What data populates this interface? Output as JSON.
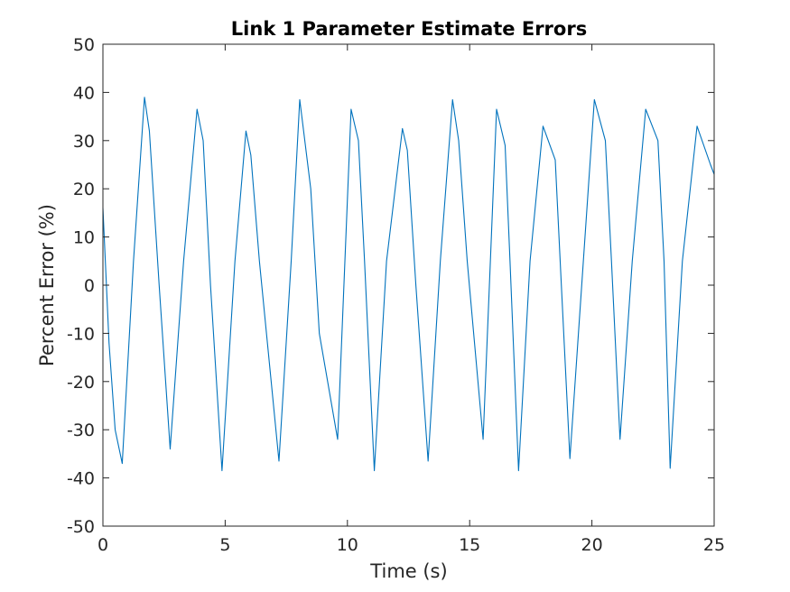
{
  "chart_data": {
    "type": "line",
    "title": "Link 1 Parameter Estimate Errors",
    "xlabel": "Time (s)",
    "ylabel": "Percent Error (%)",
    "xlim": [
      0,
      25
    ],
    "ylim": [
      -50,
      50
    ],
    "xticks": [
      0,
      5,
      10,
      15,
      20,
      25
    ],
    "yticks": [
      -50,
      -40,
      -30,
      -20,
      -10,
      0,
      10,
      20,
      30,
      40,
      50
    ],
    "grid": false,
    "legend": "none",
    "series": [
      {
        "color": "#0072bd",
        "x": [
          0.0,
          0.25,
          0.5,
          0.79,
          1.25,
          1.7,
          1.9,
          2.3,
          2.75,
          3.3,
          3.85,
          4.1,
          4.4,
          4.87,
          5.4,
          5.85,
          6.05,
          6.4,
          7.2,
          7.7,
          8.05,
          8.5,
          8.85,
          9.6,
          10.15,
          10.45,
          10.7,
          11.1,
          11.6,
          12.25,
          12.45,
          12.8,
          13.3,
          13.8,
          14.3,
          14.55,
          14.9,
          15.55,
          16.1,
          16.45,
          16.65,
          17.0,
          17.47,
          18.0,
          18.5,
          18.75,
          19.1,
          19.65,
          20.1,
          20.55,
          20.8,
          21.15,
          21.65,
          22.2,
          22.7,
          22.95,
          23.2,
          23.7,
          24.3,
          24.85,
          25.0
        ],
        "y": [
          16,
          -12,
          -30,
          -37,
          5,
          39,
          32,
          0,
          -34,
          5,
          36.5,
          30,
          0,
          -38.5,
          5,
          32,
          27,
          5,
          -36.5,
          5,
          38.5,
          20,
          -10,
          -32,
          36.5,
          30,
          5,
          -38.5,
          5,
          32.5,
          28,
          0,
          -36.5,
          5,
          38.5,
          30,
          5,
          -32,
          36.5,
          29,
          5,
          -38.5,
          5,
          33,
          26,
          0,
          -36,
          5,
          38.5,
          30,
          5,
          -32,
          5,
          36.5,
          30,
          5,
          -38,
          5,
          33,
          25,
          23
        ]
      }
    ]
  }
}
